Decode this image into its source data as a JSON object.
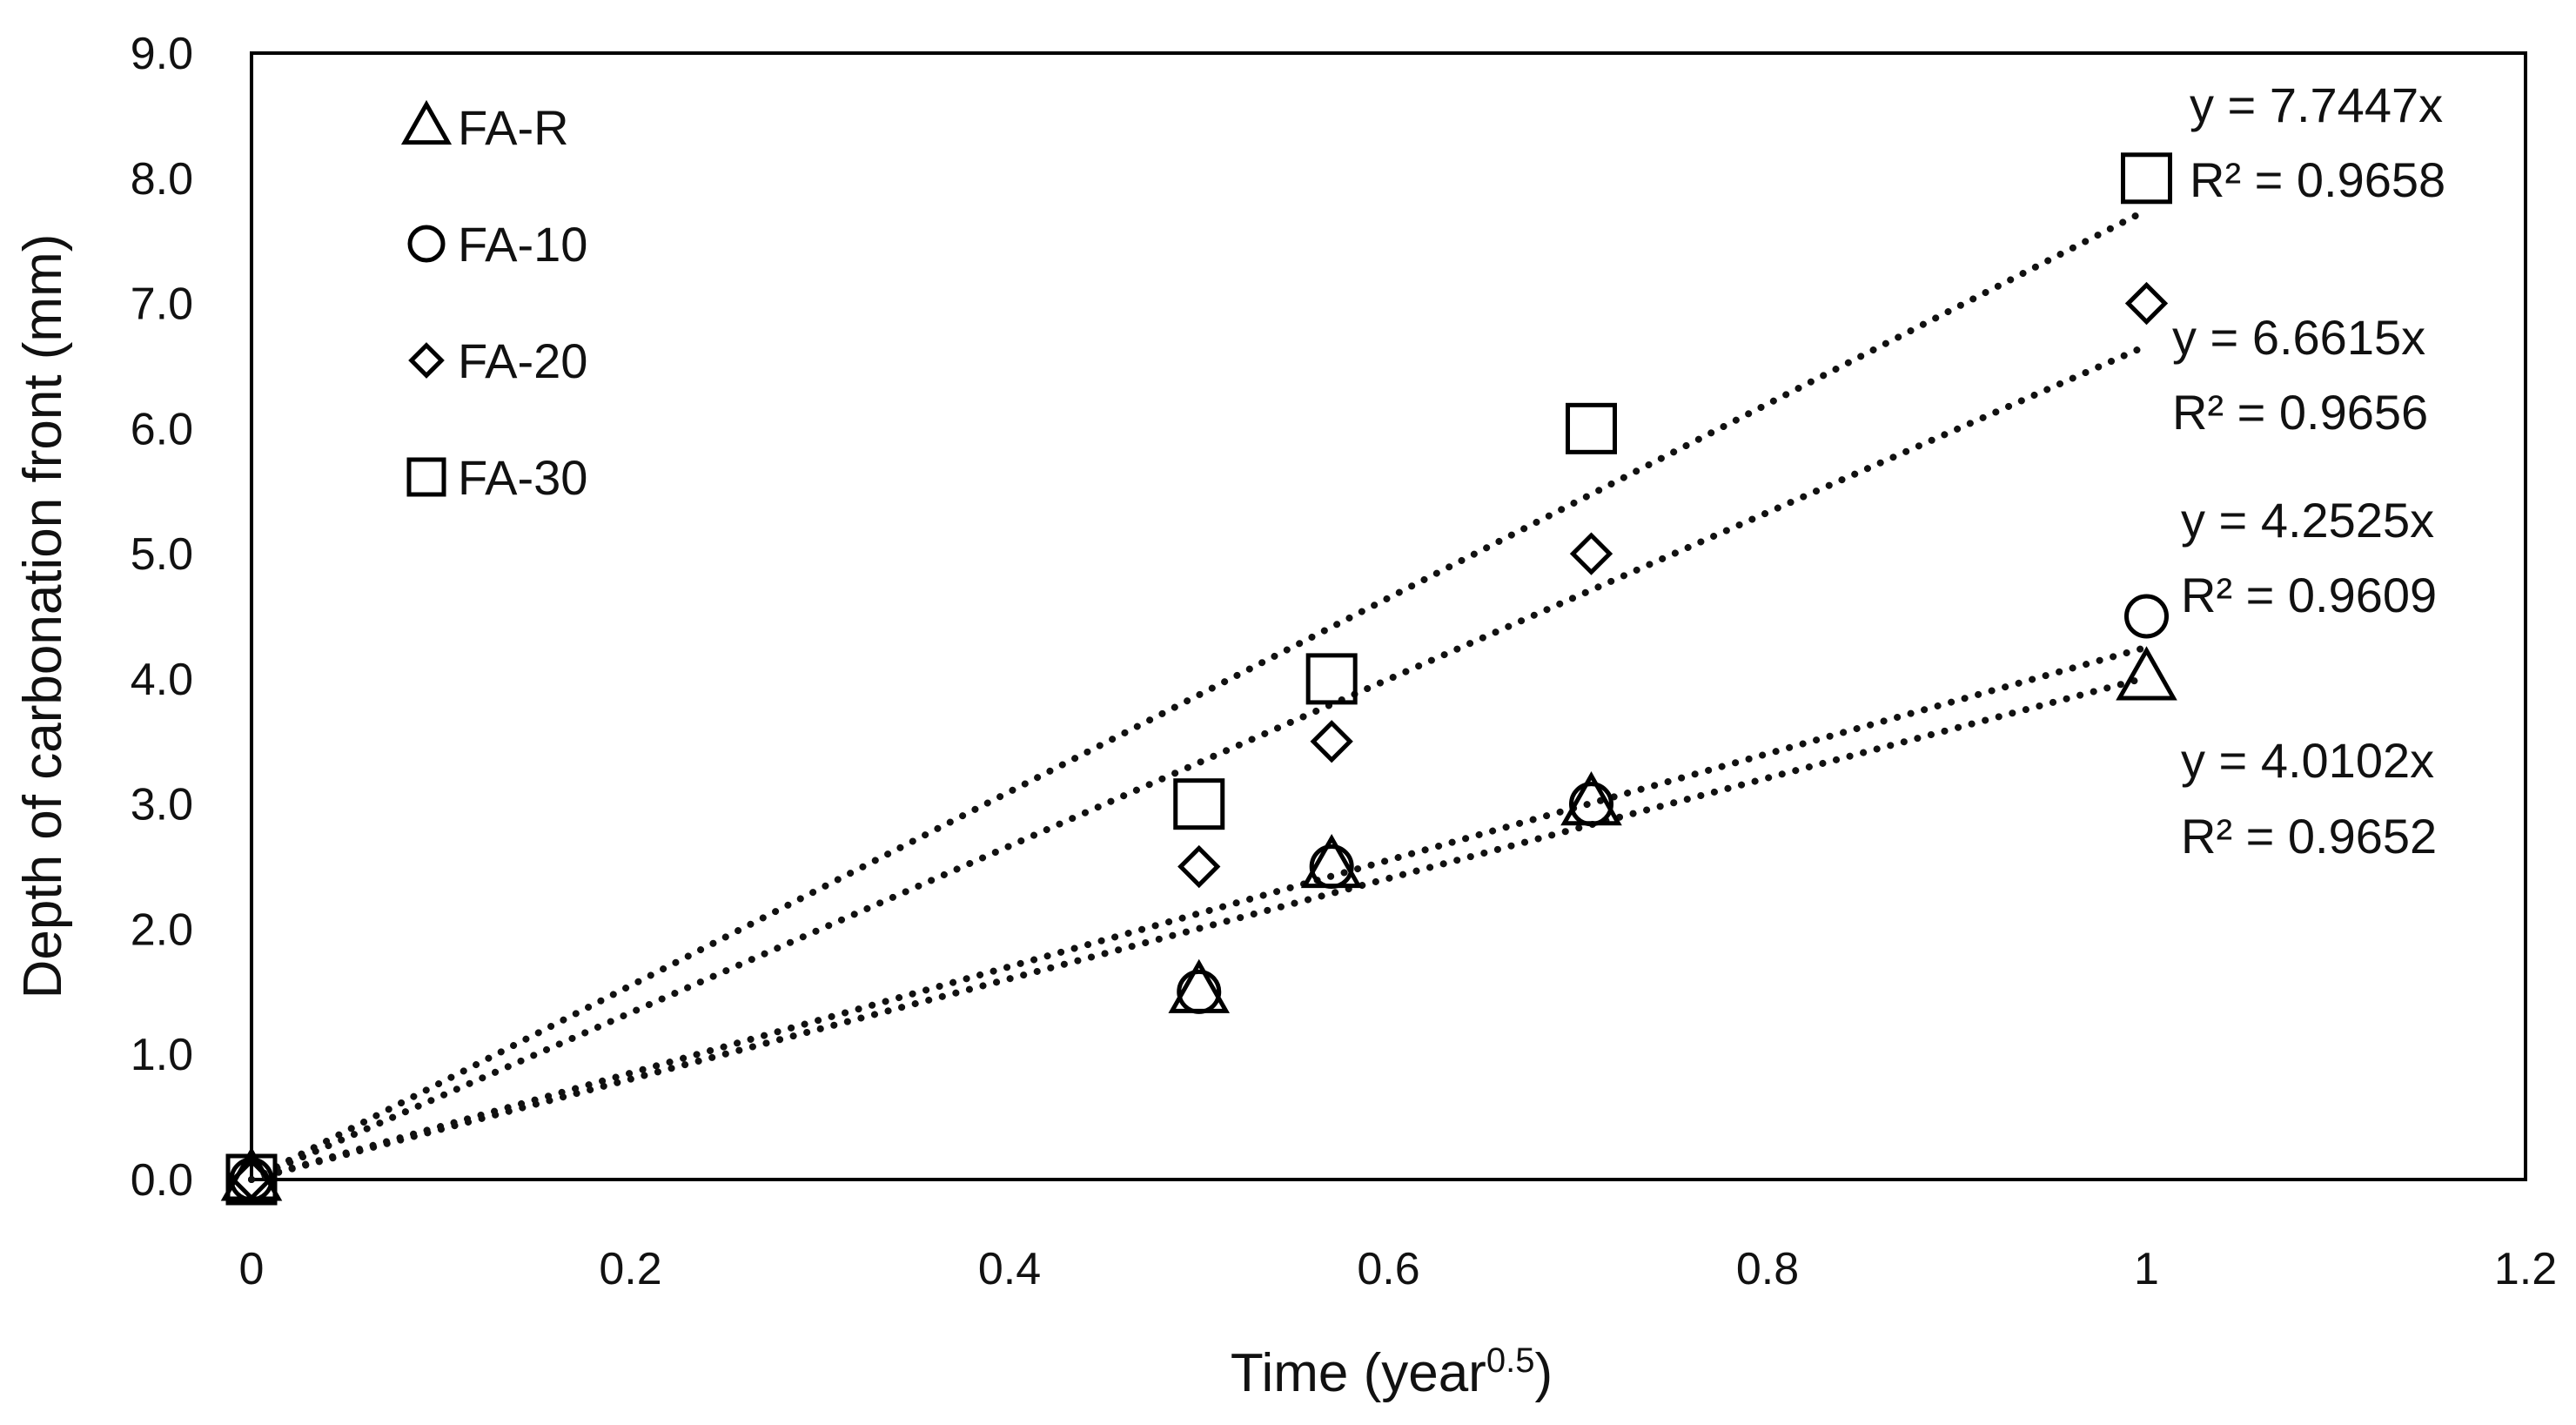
{
  "chart_data": {
    "type": "scatter",
    "title": "",
    "xlabel": "Time (year",
    "xlabel_sup": "0.5",
    "xlabel_suffix": ")",
    "ylabel": "Depth of carbonation front (mm)",
    "xlim": [
      0,
      1.2
    ],
    "ylim": [
      0,
      9
    ],
    "x_ticks": [
      0,
      0.2,
      0.4,
      0.6,
      0.8,
      1,
      1.2
    ],
    "x_tick_labels": [
      "0",
      "0.2",
      "0.4",
      "0.6",
      "0.8",
      "1",
      "1.2"
    ],
    "y_ticks": [
      0,
      1,
      2,
      3,
      4,
      5,
      6,
      7,
      8,
      9
    ],
    "y_tick_labels": [
      "0.0",
      "1.0",
      "2.0",
      "3.0",
      "4.0",
      "5.0",
      "6.0",
      "7.0",
      "8.0",
      "9.0"
    ],
    "grid": false,
    "legend_position": "top-left",
    "series": [
      {
        "name": "FA-R",
        "marker": "triangle",
        "x": [
          0,
          0.5,
          0.57,
          0.707,
          1
        ],
        "y": [
          0,
          1.5,
          2.5,
          3.0,
          4.0
        ],
        "trend_slope": 4.0102,
        "equation": "y = 4.0102x",
        "r2": "R² = 0.9652"
      },
      {
        "name": "FA-10",
        "marker": "circle",
        "x": [
          0,
          0.5,
          0.57,
          0.707,
          1
        ],
        "y": [
          0,
          1.5,
          2.5,
          3.0,
          4.5
        ],
        "trend_slope": 4.2525,
        "equation": "y = 4.2525x",
        "r2": "R² = 0.9609"
      },
      {
        "name": "FA-20",
        "marker": "diamond",
        "x": [
          0,
          0.5,
          0.57,
          0.707,
          1
        ],
        "y": [
          0,
          2.5,
          3.5,
          5.0,
          7.0
        ],
        "trend_slope": 6.6615,
        "equation": "y = 6.6615x",
        "r2": "R² = 0.9656"
      },
      {
        "name": "FA-30",
        "marker": "square",
        "x": [
          0,
          0.5,
          0.57,
          0.707,
          1
        ],
        "y": [
          0,
          3.0,
          4.0,
          6.0,
          8.0
        ],
        "trend_slope": 7.7447,
        "equation": "y = 7.7447x",
        "r2": "R² = 0.9658"
      }
    ]
  }
}
